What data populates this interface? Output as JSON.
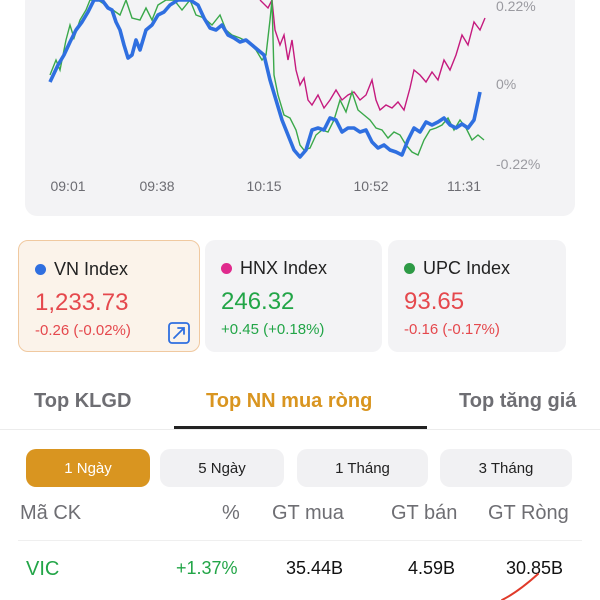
{
  "chart": {
    "y_ticks": [
      "0.22%",
      "0%",
      "-0.22%"
    ],
    "x_ticks": [
      "09:01",
      "09:38",
      "10:15",
      "10:52",
      "11:31"
    ],
    "colors": {
      "vn": "#2f6fe0",
      "hnx": "#c51a7e",
      "upc": "#3aa84a"
    }
  },
  "indices": [
    {
      "name": "VN Index",
      "value": "1,233.73",
      "change": "-0.26 (-0.02%)",
      "dot_color": "#2f6fe0",
      "trend": "down",
      "selected": true,
      "expand_icon": "expand-icon"
    },
    {
      "name": "HNX Index",
      "value": "246.32",
      "change": "+0.45 (+0.18%)",
      "dot_color": "#e02a8d",
      "trend": "up",
      "selected": false
    },
    {
      "name": "UPC Index",
      "value": "93.65",
      "change": "-0.16 (-0.17%)",
      "dot_color": "#2d9a45",
      "trend": "down",
      "selected": false
    }
  ],
  "tabs": [
    {
      "label": "Top KLGD",
      "active": false
    },
    {
      "label": "Top NN mua ròng",
      "active": true
    },
    {
      "label": "Top tăng giá",
      "active": false
    }
  ],
  "periods": [
    {
      "label": "1 Ngày",
      "active": true
    },
    {
      "label": "5 Ngày",
      "active": false
    },
    {
      "label": "1 Tháng",
      "active": false
    },
    {
      "label": "3 Tháng",
      "active": false
    }
  ],
  "table": {
    "headers": [
      "Mã CK",
      "%",
      "GT mua",
      "GT bán",
      "GT Ròng"
    ],
    "rows": [
      {
        "symbol": "VIC",
        "pct": "+1.37%",
        "buy": "35.44B",
        "sell": "4.59B",
        "net": "30.85B"
      }
    ]
  }
}
